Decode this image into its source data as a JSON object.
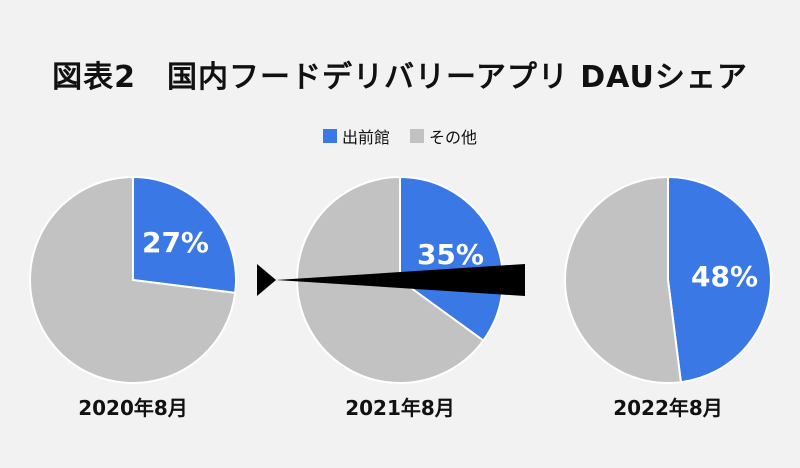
{
  "title": "図表2　国内フードデリバリーアプリ DAUシェア",
  "colors": {
    "share": "#3a78e6",
    "other": "#c2c2c2",
    "arrow": "#000000"
  },
  "chart_data": {
    "type": "pie",
    "title": "図表2　国内フードデリバリーアプリ DAUシェア",
    "legend": [
      {
        "name": "出前館",
        "color": "#3a78e6"
      },
      {
        "name": "その他",
        "color": "#c2c2c2"
      }
    ],
    "legend_placement": "top-center",
    "pies": [
      {
        "period": "2020年8月",
        "slices": [
          {
            "label": "出前館",
            "value": 27,
            "text": "27%"
          },
          {
            "label": "その他",
            "value": 73
          }
        ]
      },
      {
        "period": "2021年8月",
        "slices": [
          {
            "label": "出前館",
            "value": 35,
            "text": "35%"
          },
          {
            "label": "その他",
            "value": 65
          }
        ]
      },
      {
        "period": "2022年8月",
        "slices": [
          {
            "label": "出前館",
            "value": 48,
            "text": "48%"
          },
          {
            "label": "その他",
            "value": 52
          }
        ]
      }
    ]
  }
}
